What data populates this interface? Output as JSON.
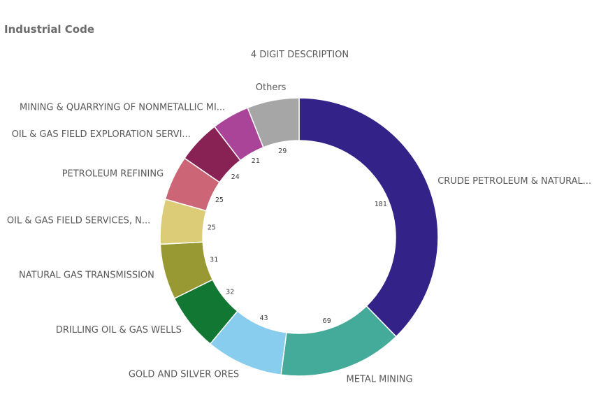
{
  "panel": {
    "title": "Industrial Code"
  },
  "chart_data": {
    "type": "pie",
    "donut": true,
    "title": "4 DIGIT DESCRIPTION",
    "categories": [
      "CRUDE PETROLEUM & NATURAL...",
      "METAL MINING",
      "GOLD AND SILVER ORES",
      "DRILLING OIL & GAS WELLS",
      "NATURAL GAS TRANSMISSION",
      "OIL & GAS FIELD SERVICES, N...",
      "PETROLEUM REFINING",
      "OIL & GAS FIELD EXPLORATION SERVI...",
      "MINING & QUARRYING OF NONMETALLIC MI...",
      "Others"
    ],
    "values": [
      181,
      69,
      43,
      32,
      31,
      25,
      25,
      24,
      21,
      29
    ],
    "colors": [
      "#332288",
      "#44aa99",
      "#88ccee",
      "#117733",
      "#999933",
      "#ddcc77",
      "#cc6677",
      "#882255",
      "#aa4499",
      "#a6a6a6"
    ],
    "data_labels": [
      "181",
      "69",
      "43",
      "32",
      "31",
      "25",
      "25",
      "24",
      "21",
      "29"
    ]
  }
}
